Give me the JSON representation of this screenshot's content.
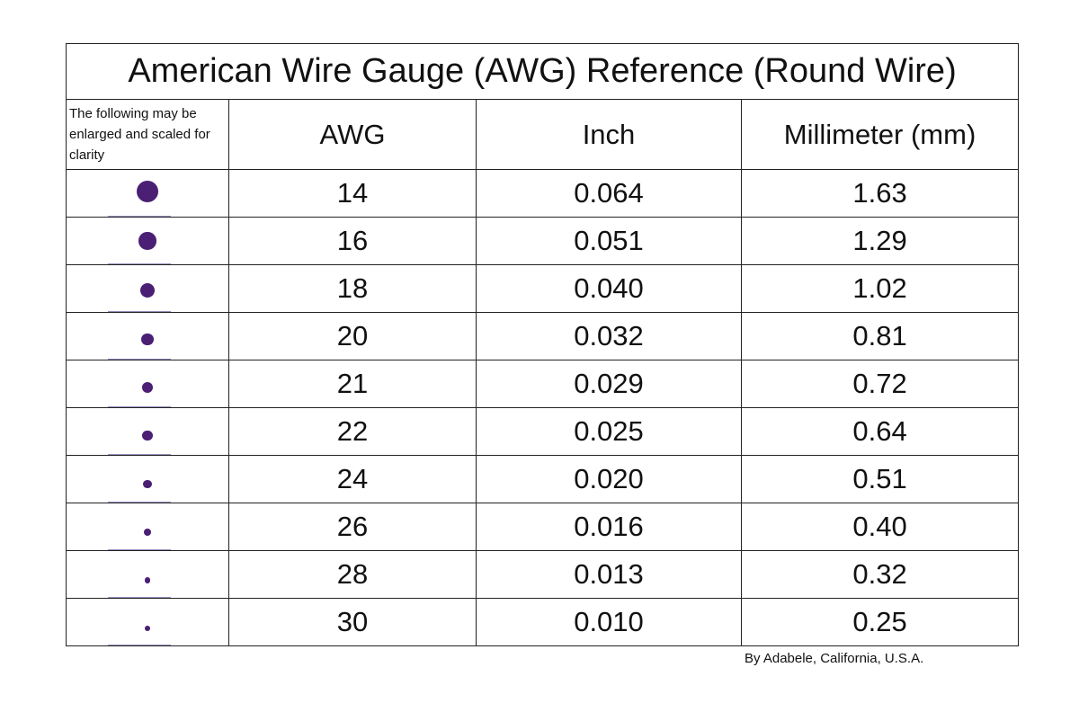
{
  "header": {
    "title": "American Wire Gauge (AWG) Reference (Round Wire)"
  },
  "table": {
    "columns": [
      "The following may be enlarged and scaled for clarity",
      "AWG",
      "Inch",
      "Millimeter (mm)"
    ],
    "rows": [
      [
        "14",
        "0.064",
        "1.63"
      ],
      [
        "16",
        "0.051",
        "1.29"
      ],
      [
        "18",
        "0.040",
        "1.02"
      ],
      [
        "20",
        "0.032",
        "0.81"
      ],
      [
        "21",
        "0.029",
        "0.72"
      ],
      [
        "22",
        "0.025",
        "0.64"
      ],
      [
        "24",
        "0.020",
        "0.51"
      ],
      [
        "26",
        "0.016",
        "0.40"
      ],
      [
        "28",
        "0.013",
        "0.32"
      ],
      [
        "30",
        "0.010",
        "0.25"
      ]
    ]
  },
  "footer": {
    "credit": "By Adabele, California, U.S.A."
  }
}
